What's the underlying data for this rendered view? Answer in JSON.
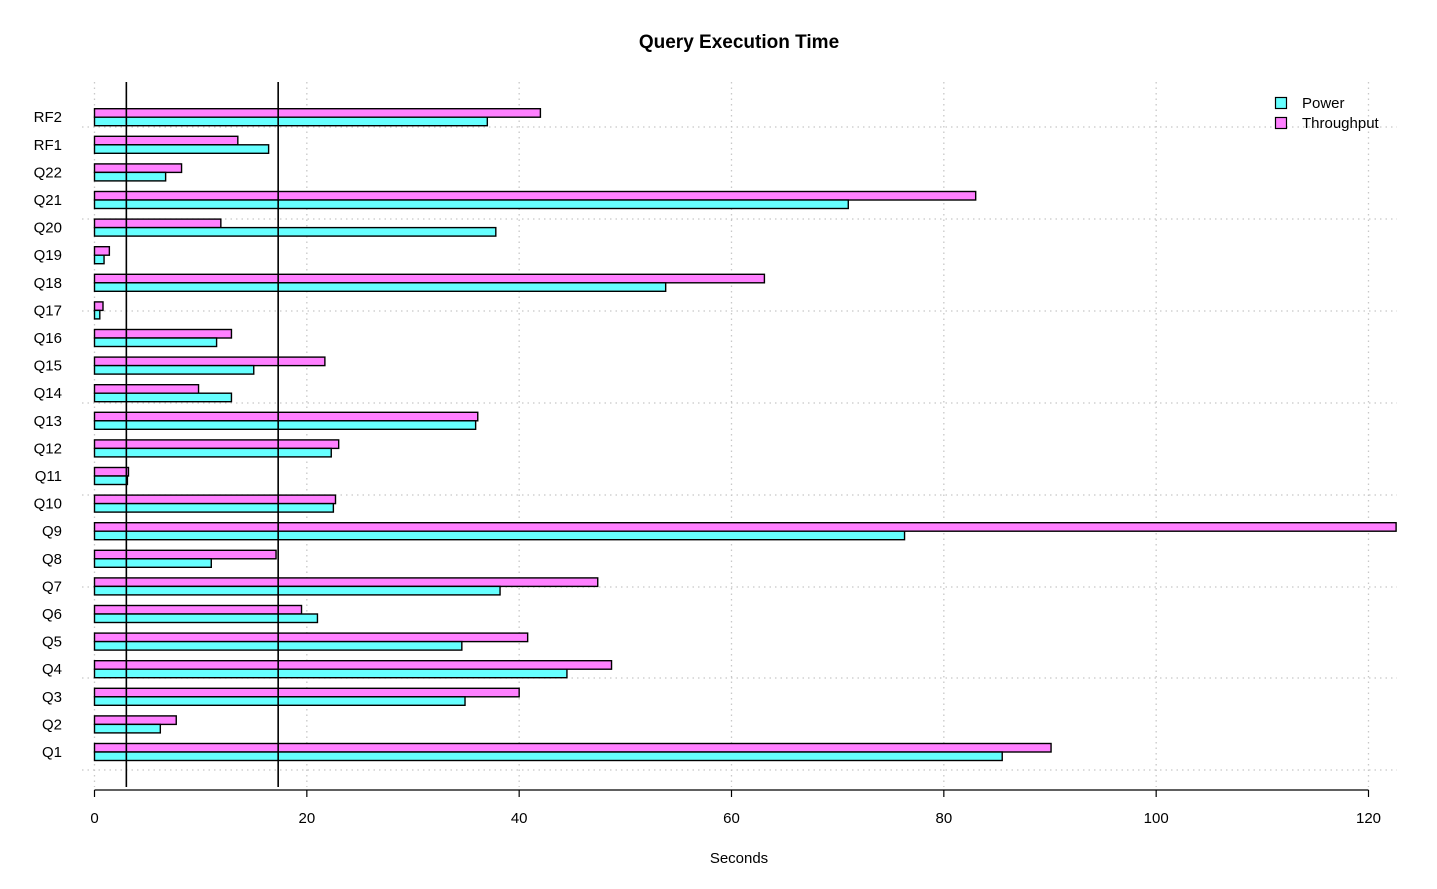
{
  "chart_data": {
    "type": "bar",
    "orientation": "horizontal",
    "title": "Query Execution Time",
    "xlabel": "Seconds",
    "ylabel": "",
    "xlim": [
      0,
      123
    ],
    "x_ticks": [
      0,
      20,
      40,
      60,
      80,
      100,
      120
    ],
    "grid": true,
    "legend_position": "top-right",
    "categories": [
      "Q1",
      "Q2",
      "Q3",
      "Q4",
      "Q5",
      "Q6",
      "Q7",
      "Q8",
      "Q9",
      "Q10",
      "Q11",
      "Q12",
      "Q13",
      "Q14",
      "Q15",
      "Q16",
      "Q17",
      "Q18",
      "Q19",
      "Q20",
      "Q21",
      "Q22",
      "RF1",
      "RF2"
    ],
    "series": [
      {
        "name": "Power",
        "color": "#66ffff",
        "values": [
          85.5,
          6.2,
          34.9,
          44.5,
          34.6,
          21.0,
          38.2,
          11.0,
          76.3,
          22.5,
          3.1,
          22.3,
          35.9,
          12.9,
          15.0,
          11.5,
          0.5,
          53.8,
          0.9,
          37.8,
          71.0,
          6.7,
          16.4,
          37.0
        ]
      },
      {
        "name": "Throughput",
        "color": "#ff80ff",
        "values": [
          90.1,
          7.7,
          40.0,
          48.7,
          40.8,
          19.5,
          47.4,
          17.1,
          122.6,
          22.7,
          3.2,
          23.0,
          36.1,
          9.8,
          21.7,
          12.9,
          0.8,
          63.1,
          1.4,
          11.9,
          83.0,
          8.2,
          13.5,
          42.0
        ]
      }
    ],
    "reference_lines": [
      3.0,
      17.3
    ]
  }
}
